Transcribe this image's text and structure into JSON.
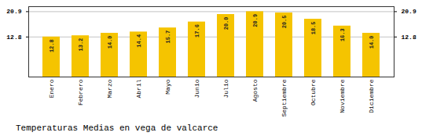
{
  "chart_data": {
    "type": "bar",
    "title": "Temperaturas Medias en vega de valcarce",
    "categories": [
      "Enero",
      "Febrero",
      "Marzo",
      "Abril",
      "Mayo",
      "Junio",
      "Julio",
      "Agosto",
      "Septiembre",
      "Octubre",
      "Noviembre",
      "Diciembre"
    ],
    "values": [
      12.8,
      13.2,
      14.0,
      14.4,
      15.7,
      17.6,
      20.0,
      20.9,
      20.5,
      18.5,
      16.3,
      14.0
    ],
    "value_labels": [
      "12.8",
      "13.2",
      "14.0",
      "14.4",
      "15.7",
      "17.6",
      "20.0",
      "20.9",
      "20.5",
      "18.5",
      "16.3",
      "14.0"
    ],
    "data_labels": true,
    "color": "#F5C400",
    "ylim": [
      0,
      22.5
    ],
    "yticks": [
      12.8,
      20.9
    ],
    "y2lim": [
      0,
      22.5
    ],
    "y2ticks": [
      12.8,
      20.9
    ],
    "grid": true
  }
}
